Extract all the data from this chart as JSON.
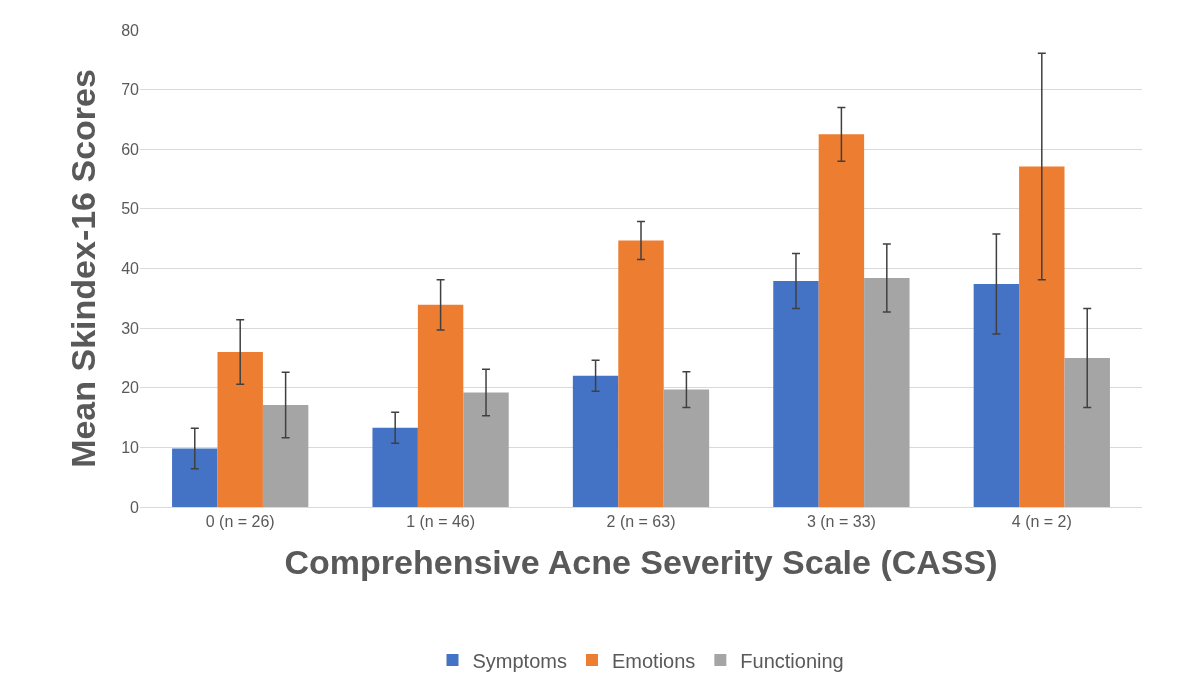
{
  "chart_data": {
    "type": "bar",
    "xlabel": "Comprehensive Acne Severity Scale (CASS)",
    "ylabel": "Mean Skindex-16 Scores",
    "categories": [
      "0 (n = 26)",
      "1 (n = 46)",
      "2 (n = 63)",
      "3 (n = 33)",
      "4 (n = 2)"
    ],
    "series": [
      {
        "name": "Symptoms",
        "color": "#4472c4",
        "values": [
          9.8,
          13.3,
          22.0,
          37.9,
          37.4
        ],
        "errors": [
          3.4,
          2.6,
          2.6,
          4.6,
          8.4
        ]
      },
      {
        "name": "Emotions",
        "color": "#ed7d31",
        "values": [
          26.0,
          33.9,
          44.7,
          62.5,
          57.1
        ],
        "errors": [
          5.4,
          4.2,
          3.2,
          4.5,
          19
        ]
      },
      {
        "name": "Functioning",
        "color": "#a5a5a5",
        "values": [
          17.1,
          19.2,
          19.7,
          38.4,
          25.0
        ],
        "errors": [
          5.5,
          3.9,
          3.0,
          5.7,
          8.3
        ]
      }
    ],
    "ylim": [
      0,
      80
    ],
    "yticks": [
      0,
      10,
      20,
      30,
      40,
      50,
      60,
      70,
      80
    ],
    "grid": "y",
    "legend": "bottom"
  }
}
